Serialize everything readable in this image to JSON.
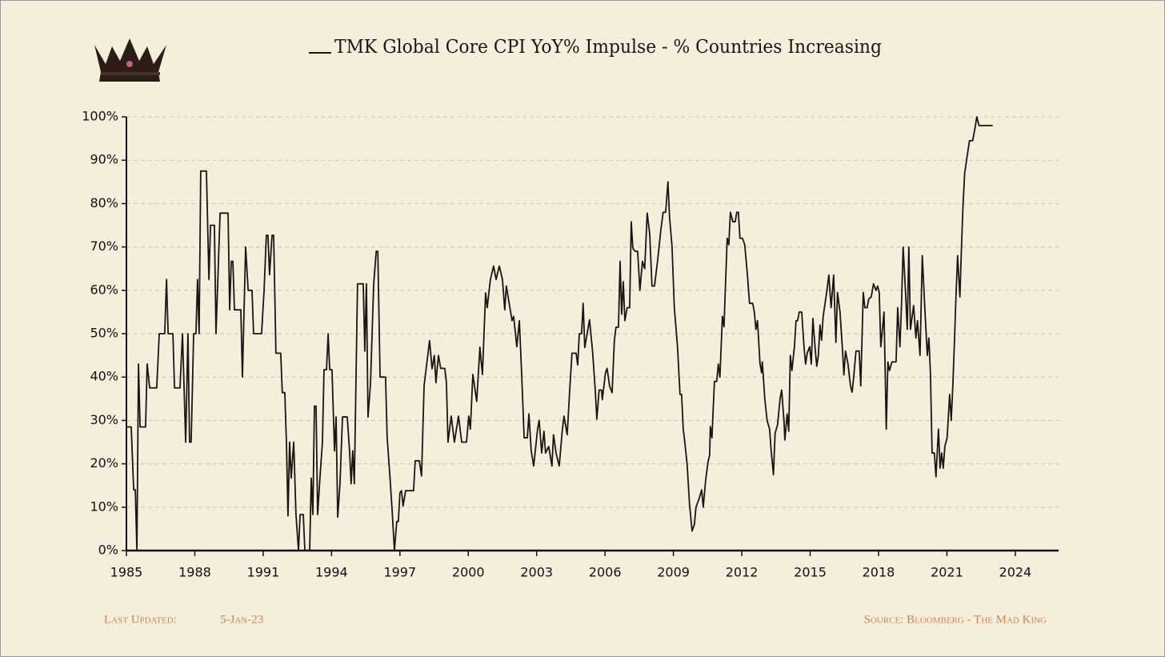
{
  "chart_data": {
    "type": "line",
    "footer_left_label": "Last Updated:",
    "footer_left_date": "5-Jan-23",
    "footer_right": "Source: Bloomberg - The Mad King",
    "xlim": [
      1985,
      2025.9
    ],
    "xticks": [
      1985,
      1988,
      1991,
      1994,
      1997,
      2000,
      2003,
      2006,
      2009,
      2012,
      2015,
      2018,
      2021,
      2024
    ],
    "ylim": [
      0,
      100
    ],
    "yticks": [
      {
        "value": 0,
        "label": "0%"
      },
      {
        "value": 10,
        "label": "10%"
      },
      {
        "value": 20,
        "label": "20%"
      },
      {
        "value": 30,
        "label": "30%"
      },
      {
        "value": 40,
        "label": "40%"
      },
      {
        "value": 50,
        "label": "50%"
      },
      {
        "value": 60,
        "label": "60%"
      },
      {
        "value": 70,
        "label": "70%"
      },
      {
        "value": 80,
        "label": "80%"
      },
      {
        "value": 90,
        "label": "90%"
      },
      {
        "value": 100,
        "label": "100%"
      }
    ],
    "grid": true,
    "legend": "top",
    "x": [
      1985.0,
      1985.21,
      1985.32,
      1985.39,
      1985.46,
      1985.53,
      1985.6,
      1985.84,
      1985.91,
      1986.02,
      1986.33,
      1986.44,
      1986.68,
      1986.76,
      1986.83,
      1987.04,
      1987.11,
      1987.35,
      1987.46,
      1987.6,
      1987.7,
      1987.77,
      1987.84,
      1987.95,
      1988.05,
      1988.12,
      1988.19,
      1988.26,
      1988.51,
      1988.62,
      1988.69,
      1988.86,
      1988.93,
      1989.11,
      1989.46,
      1989.53,
      1989.6,
      1989.67,
      1989.74,
      1990.02,
      1990.09,
      1990.23,
      1990.34,
      1990.51,
      1990.58,
      1990.93,
      1991.04,
      1991.14,
      1991.21,
      1991.28,
      1991.39,
      1991.46,
      1991.56,
      1991.77,
      1991.84,
      1991.95,
      1992.02,
      1992.09,
      1992.16,
      1992.23,
      1992.34,
      1992.44,
      1992.55,
      1992.62,
      1992.76,
      1992.83,
      1993.04,
      1993.11,
      1993.18,
      1993.25,
      1993.32,
      1993.39,
      1993.49,
      1993.6,
      1993.67,
      1993.78,
      1993.85,
      1993.92,
      1994.02,
      1994.13,
      1994.2,
      1994.27,
      1994.37,
      1994.48,
      1994.69,
      1994.79,
      1994.86,
      1994.93,
      1995.0,
      1995.14,
      1995.39,
      1995.46,
      1995.53,
      1995.6,
      1995.71,
      1995.85,
      1995.96,
      1996.03,
      1996.13,
      1996.37,
      1996.44,
      1996.55,
      1996.65,
      1996.76,
      1996.86,
      1996.93,
      1997.0,
      1997.07,
      1997.14,
      1997.25,
      1997.6,
      1997.67,
      1997.85,
      1997.95,
      1998.06,
      1998.3,
      1998.41,
      1998.51,
      1998.58,
      1998.69,
      1998.79,
      1998.97,
      1999.04,
      1999.11,
      1999.25,
      1999.39,
      1999.57,
      1999.71,
      1999.92,
      2000.02,
      2000.09,
      2000.2,
      2000.37,
      2000.51,
      2000.62,
      2000.76,
      2000.83,
      2000.97,
      2001.11,
      2001.22,
      2001.36,
      2001.5,
      2001.6,
      2001.67,
      2001.92,
      2001.99,
      2002.13,
      2002.24,
      2002.34,
      2002.45,
      2002.59,
      2002.66,
      2002.76,
      2002.87,
      2003.04,
      2003.11,
      2003.22,
      2003.32,
      2003.39,
      2003.53,
      2003.67,
      2003.74,
      2003.85,
      2003.99,
      2004.13,
      2004.2,
      2004.34,
      2004.45,
      2004.55,
      2004.73,
      2004.8,
      2004.87,
      2004.97,
      2005.04,
      2005.11,
      2005.32,
      2005.46,
      2005.57,
      2005.64,
      2005.74,
      2005.85,
      2005.88,
      2006.02,
      2006.09,
      2006.2,
      2006.31,
      2006.41,
      2006.48,
      2006.59,
      2006.66,
      2006.73,
      2006.8,
      2006.87,
      2006.97,
      2007.08,
      2007.15,
      2007.22,
      2007.32,
      2007.43,
      2007.53,
      2007.64,
      2007.74,
      2007.85,
      2007.96,
      2008.06,
      2008.17,
      2008.31,
      2008.45,
      2008.55,
      2008.66,
      2008.76,
      2008.83,
      2008.94,
      2009.04,
      2009.18,
      2009.29,
      2009.36,
      2009.43,
      2009.5,
      2009.6,
      2009.71,
      2009.82,
      2009.92,
      2009.99,
      2010.13,
      2010.24,
      2010.31,
      2010.41,
      2010.52,
      2010.59,
      2010.62,
      2010.69,
      2010.8,
      2010.9,
      2010.97,
      2011.04,
      2011.15,
      2011.22,
      2011.29,
      2011.36,
      2011.43,
      2011.5,
      2011.61,
      2011.71,
      2011.78,
      2011.85,
      2011.92,
      2012.03,
      2012.13,
      2012.24,
      2012.34,
      2012.48,
      2012.55,
      2012.62,
      2012.69,
      2012.8,
      2012.87,
      2012.9,
      2013.01,
      2013.11,
      2013.22,
      2013.29,
      2013.39,
      2013.46,
      2013.57,
      2013.68,
      2013.75,
      2013.85,
      2013.89,
      2013.99,
      2014.06,
      2014.13,
      2014.2,
      2014.31,
      2014.38,
      2014.45,
      2014.52,
      2014.63,
      2014.73,
      2014.8,
      2014.87,
      2014.98,
      2015.05,
      2015.12,
      2015.22,
      2015.29,
      2015.36,
      2015.43,
      2015.5,
      2015.57,
      2015.71,
      2015.82,
      2015.92,
      2016.03,
      2016.13,
      2016.2,
      2016.31,
      2016.41,
      2016.48,
      2016.55,
      2016.66,
      2016.77,
      2016.84,
      2016.91,
      2017.01,
      2017.15,
      2017.22,
      2017.33,
      2017.4,
      2017.5,
      2017.57,
      2017.68,
      2017.78,
      2017.89,
      2017.96,
      2018.03,
      2018.1,
      2018.24,
      2018.34,
      2018.41,
      2018.48,
      2018.59,
      2018.77,
      2018.84,
      2018.94,
      2019.01,
      2019.08,
      2019.19,
      2019.26,
      2019.33,
      2019.4,
      2019.54,
      2019.64,
      2019.71,
      2019.82,
      2019.92,
      2020.03,
      2020.14,
      2020.21,
      2020.28,
      2020.35,
      2020.45,
      2020.52,
      2020.63,
      2020.7,
      2020.77,
      2020.84,
      2020.91,
      2021.01,
      2021.12,
      2021.19,
      2021.26,
      2021.33,
      2021.4,
      2021.47,
      2021.57,
      2021.64,
      2021.71,
      2021.78,
      2021.89,
      2021.99,
      2022.13,
      2022.24,
      2022.31,
      2022.41,
      2023.01
    ],
    "series": [
      {
        "name": "TMK Global Core CPI YoY% Impulse - % Countries Increasing",
        "color": "#1a1512",
        "values": [
          28.5,
          28.5,
          14,
          14,
          0,
          43,
          28.5,
          28.5,
          43,
          37.5,
          37.5,
          50,
          50,
          62.5,
          50,
          50,
          37.5,
          37.5,
          50,
          25,
          50,
          25,
          25,
          50,
          50,
          62.5,
          50,
          87.5,
          87.5,
          62.5,
          75,
          75,
          50,
          77.8,
          77.8,
          55.5,
          66.7,
          66.7,
          55.5,
          55.5,
          40,
          70,
          60,
          60,
          50,
          50,
          60,
          72.7,
          72.7,
          63.6,
          72.7,
          72.7,
          45.5,
          45.5,
          36.4,
          36.4,
          25,
          8,
          25,
          16.7,
          25,
          8.3,
          0,
          8.3,
          8.3,
          0,
          0,
          16.7,
          8.3,
          33.3,
          33.3,
          8.3,
          16.7,
          25,
          41.7,
          41.7,
          50,
          41.7,
          41.7,
          23,
          30.8,
          7.7,
          15.4,
          30.8,
          30.8,
          23,
          15.4,
          23,
          15.4,
          61.5,
          61.5,
          46,
          61.5,
          30.8,
          38.5,
          61.5,
          69,
          69,
          40,
          40,
          26,
          18,
          10,
          0,
          6.7,
          6.7,
          13.3,
          13.8,
          10.3,
          13.8,
          13.8,
          20.7,
          20.7,
          17.2,
          38,
          48.4,
          41.9,
          45,
          38.7,
          45,
          42,
          42,
          38.7,
          25,
          31,
          25,
          31,
          25,
          25,
          31,
          28,
          40.6,
          34.4,
          46.9,
          40.6,
          59.4,
          56,
          62.5,
          65.6,
          62.5,
          65.6,
          62.5,
          55.5,
          61,
          53,
          54,
          47,
          53,
          41,
          26,
          26,
          31.5,
          23,
          19.5,
          28,
          30,
          22.5,
          27.5,
          22.5,
          24,
          19.5,
          26.7,
          22.5,
          19.5,
          28,
          31,
          26.7,
          37,
          45.5,
          45.5,
          42.8,
          50,
          50,
          57,
          46.8,
          53.2,
          45.5,
          37,
          30.3,
          37,
          37,
          34.8,
          41,
          42,
          37.9,
          36.4,
          48.5,
          51.5,
          51.5,
          66.7,
          54.5,
          62,
          53,
          56,
          56,
          75.8,
          69.7,
          69,
          69,
          60,
          66.7,
          65,
          77.8,
          73,
          61,
          61,
          67,
          74,
          78,
          78,
          85,
          77,
          70,
          56,
          47,
          36,
          36,
          28,
          25,
          20,
          10.5,
          4.5,
          6,
          10,
          12,
          14,
          10,
          16,
          20.5,
          22,
          28.6,
          26,
          39,
          39,
          43,
          40,
          54,
          51.6,
          62,
          72,
          70.5,
          78,
          75.8,
          75.8,
          78,
          78,
          72,
          72,
          70.5,
          64,
          57,
          57,
          55,
          51,
          53,
          43,
          41,
          43.5,
          35,
          30,
          28,
          23,
          17.5,
          27,
          29,
          35,
          37,
          30,
          25.5,
          31.5,
          27.5,
          45,
          41.5,
          47,
          53,
          53,
          55,
          55,
          47,
          43,
          45.5,
          47,
          43,
          53.5,
          46.5,
          42.5,
          45,
          52,
          48.5,
          54,
          59,
          63.5,
          56,
          63.5,
          48,
          59.5,
          55,
          47,
          40.5,
          46,
          43,
          38,
          36.5,
          40,
          46,
          46,
          38,
          59.5,
          56,
          56,
          58,
          58.5,
          61.5,
          60,
          61,
          59.5,
          47,
          55,
          28,
          43.5,
          41.5,
          43.5,
          43.5,
          56,
          47,
          57,
          70,
          59,
          51,
          70,
          51,
          56.5,
          49,
          53,
          45,
          68,
          56,
          45,
          49,
          40.5,
          22.5,
          22.5,
          17,
          28,
          19,
          22.5,
          19,
          24,
          26,
          36,
          30,
          38,
          48,
          59,
          68,
          58.5,
          70,
          80,
          87,
          91,
          94.5,
          94.5,
          97.6,
          100,
          98,
          98
        ]
      }
    ]
  }
}
